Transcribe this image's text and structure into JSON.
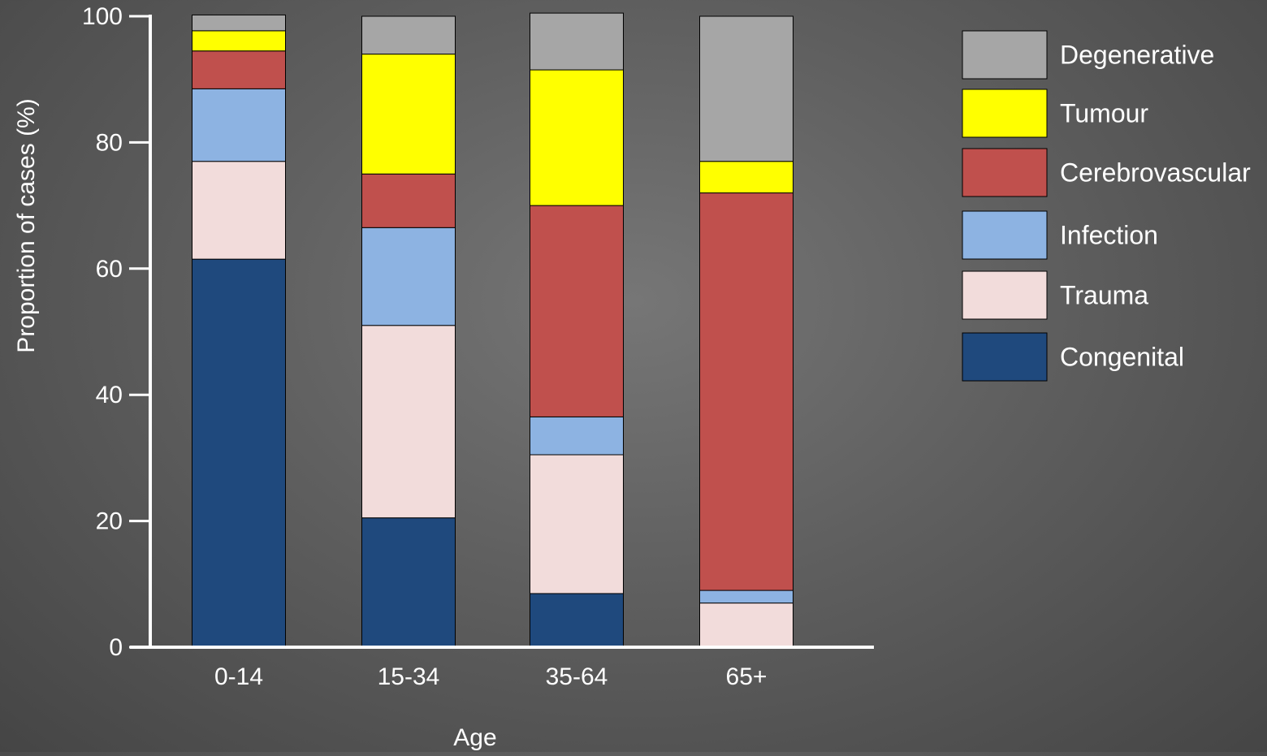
{
  "chart_data": {
    "type": "bar",
    "stacked": true,
    "xlabel": "Age",
    "ylabel": "Proportion of cases (%)",
    "ylim": [
      0,
      100
    ],
    "yticks": [
      0,
      20,
      40,
      60,
      80,
      100
    ],
    "categories": [
      "0-14",
      "15-34",
      "35-64",
      "65+"
    ],
    "series": [
      {
        "name": "Congenital",
        "color": "#1f497d",
        "values": [
          61.5,
          20.5,
          8.5,
          0
        ]
      },
      {
        "name": "Trauma",
        "color": "#f2dcdb",
        "values": [
          15.5,
          30.5,
          22,
          7
        ]
      },
      {
        "name": "Infection",
        "color": "#8db3e2",
        "values": [
          11.5,
          15.5,
          6,
          2
        ]
      },
      {
        "name": "Cerebrovascular",
        "color": "#c0504d",
        "values": [
          6,
          8.5,
          33.5,
          63
        ]
      },
      {
        "name": "Tumour",
        "color": "#ffff00",
        "values": [
          3.2,
          19,
          21.5,
          5
        ]
      },
      {
        "name": "Degenerative",
        "color": "#a6a6a6",
        "values": [
          2.5,
          6,
          9,
          23
        ]
      }
    ],
    "legend_position": "right",
    "legend_order": [
      "Degenerative",
      "Tumour",
      "Cerebrovascular",
      "Infection",
      "Trauma",
      "Congenital"
    ],
    "grid": false
  }
}
